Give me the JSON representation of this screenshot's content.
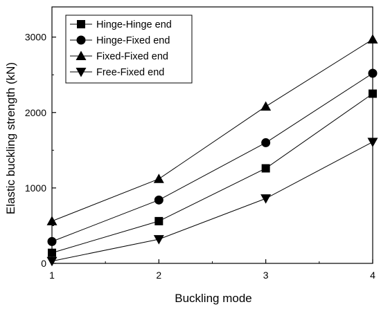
{
  "chart_data": {
    "type": "line",
    "title": "",
    "xlabel": "Buckling mode",
    "ylabel": "Elastic buckling strength (kN)",
    "x": [
      1,
      2,
      3,
      4
    ],
    "x_ticks": [
      "1",
      "2",
      "3",
      "4"
    ],
    "y_ticks": [
      "0",
      "1000",
      "2000",
      "3000"
    ],
    "xlim": [
      1,
      4
    ],
    "ylim": [
      0,
      3400
    ],
    "grid": false,
    "legend_position": "top-left",
    "line_color": "#000000",
    "series": [
      {
        "name": "Hinge-Hinge end",
        "marker": "square",
        "values": [
          140,
          560,
          1260,
          2250
        ]
      },
      {
        "name": "Hinge-Fixed end",
        "marker": "circle",
        "values": [
          290,
          840,
          1600,
          2520
        ]
      },
      {
        "name": "Fixed-Fixed end",
        "marker": "triangle-up",
        "values": [
          560,
          1120,
          2080,
          2970
        ]
      },
      {
        "name": "Free-Fixed end",
        "marker": "triangle-down",
        "values": [
          30,
          320,
          860,
          1610
        ]
      }
    ]
  }
}
